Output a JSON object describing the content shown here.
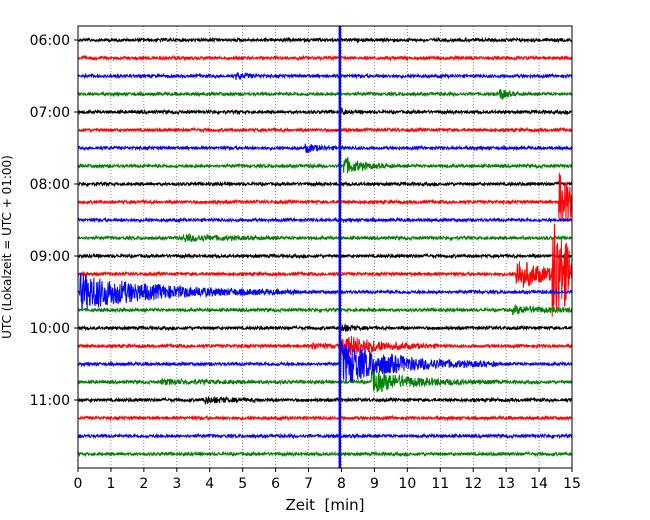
{
  "chart_data": {
    "type": "line",
    "title": "",
    "xlabel": "Zeit  [min]",
    "ylabel": "UTC (Lokalzeit = UTC + 01:00)",
    "xlim": [
      0,
      15
    ],
    "x_ticks": [
      "0",
      "1",
      "2",
      "3",
      "4",
      "5",
      "6",
      "7",
      "8",
      "9",
      "10",
      "11",
      "12",
      "13",
      "14",
      "15"
    ],
    "y_ticks": [
      "06:00",
      "07:00",
      "08:00",
      "09:00",
      "10:00",
      "11:00"
    ],
    "grid": "vertical dotted at each minute",
    "trace_interval_minutes": 15,
    "color_cycle": [
      "#000000",
      "#ff0000",
      "#0000ff",
      "#008000"
    ],
    "traces": [
      {
        "start": "06:00",
        "color": "#000000",
        "noise": 1.0,
        "events": []
      },
      {
        "start": "06:15",
        "color": "#ff0000",
        "noise": 1.0,
        "events": []
      },
      {
        "start": "06:30",
        "color": "#0000ff",
        "noise": 1.0,
        "events": [
          {
            "t": 4.8,
            "amp": 3,
            "dur": 0.3
          }
        ]
      },
      {
        "start": "06:45",
        "color": "#008000",
        "noise": 1.0,
        "events": [
          {
            "t": 12.8,
            "amp": 6,
            "dur": 0.2
          }
        ]
      },
      {
        "start": "07:00",
        "color": "#000000",
        "noise": 1.0,
        "events": [
          {
            "t": 8.0,
            "amp": 4,
            "dur": 0.1
          }
        ]
      },
      {
        "start": "07:15",
        "color": "#ff0000",
        "noise": 1.0,
        "events": []
      },
      {
        "start": "07:30",
        "color": "#0000ff",
        "noise": 1.0,
        "events": [
          {
            "t": 6.9,
            "amp": 4,
            "dur": 0.4
          }
        ]
      },
      {
        "start": "07:45",
        "color": "#008000",
        "noise": 1.0,
        "events": [
          {
            "t": 8.05,
            "amp": 9,
            "dur": 0.5
          }
        ]
      },
      {
        "start": "08:00",
        "color": "#000000",
        "noise": 1.0,
        "events": []
      },
      {
        "start": "08:15",
        "color": "#ff0000",
        "noise": 1.0,
        "events": [
          {
            "t": 14.6,
            "amp": 30,
            "dur": 0.5
          }
        ]
      },
      {
        "start": "08:30",
        "color": "#0000ff",
        "noise": 1.0,
        "events": []
      },
      {
        "start": "08:45",
        "color": "#008000",
        "noise": 1.0,
        "events": [
          {
            "t": 3.2,
            "amp": 3,
            "dur": 1.2
          }
        ]
      },
      {
        "start": "09:00",
        "color": "#000000",
        "noise": 1.0,
        "events": []
      },
      {
        "start": "09:15",
        "color": "#ff0000",
        "noise": 1.0,
        "events": [
          {
            "t": 13.3,
            "amp": 16,
            "dur": 0.9
          },
          {
            "t": 14.4,
            "amp": 55,
            "dur": 0.6
          }
        ]
      },
      {
        "start": "09:30",
        "color": "#0000ff",
        "noise": 1.0,
        "events": [
          {
            "t": 0.05,
            "amp": 18,
            "dur": 2.2
          }
        ]
      },
      {
        "start": "09:45",
        "color": "#008000",
        "noise": 1.0,
        "events": [
          {
            "t": 13.2,
            "amp": 3,
            "dur": 1.5
          }
        ]
      },
      {
        "start": "10:00",
        "color": "#000000",
        "noise": 1.0,
        "events": [
          {
            "t": 8.0,
            "amp": 4,
            "dur": 0.3
          }
        ]
      },
      {
        "start": "10:15",
        "color": "#ff0000",
        "noise": 1.0,
        "events": [
          {
            "t": 7.1,
            "amp": 3,
            "dur": 0.5
          },
          {
            "t": 8.0,
            "amp": 12,
            "dur": 1.0
          }
        ]
      },
      {
        "start": "10:30",
        "color": "#0000ff",
        "noise": 1.0,
        "events": [
          {
            "t": 7.95,
            "amp": 22,
            "dur": 1.6
          }
        ]
      },
      {
        "start": "10:45",
        "color": "#008000",
        "noise": 1.0,
        "events": [
          {
            "t": 8.9,
            "amp": 10,
            "dur": 1.3
          },
          {
            "t": 2.5,
            "amp": 2,
            "dur": 1.5
          }
        ]
      },
      {
        "start": "11:00",
        "color": "#000000",
        "noise": 1.0,
        "events": [
          {
            "t": 3.8,
            "amp": 3,
            "dur": 0.8
          }
        ]
      },
      {
        "start": "11:15",
        "color": "#ff0000",
        "noise": 1.0,
        "events": []
      },
      {
        "start": "11:30",
        "color": "#0000ff",
        "noise": 1.0,
        "events": []
      },
      {
        "start": "11:45",
        "color": "#008000",
        "noise": 1.0,
        "events": []
      }
    ],
    "vertical_event_line": {
      "x": 7.95,
      "color": "#0000ff"
    }
  }
}
